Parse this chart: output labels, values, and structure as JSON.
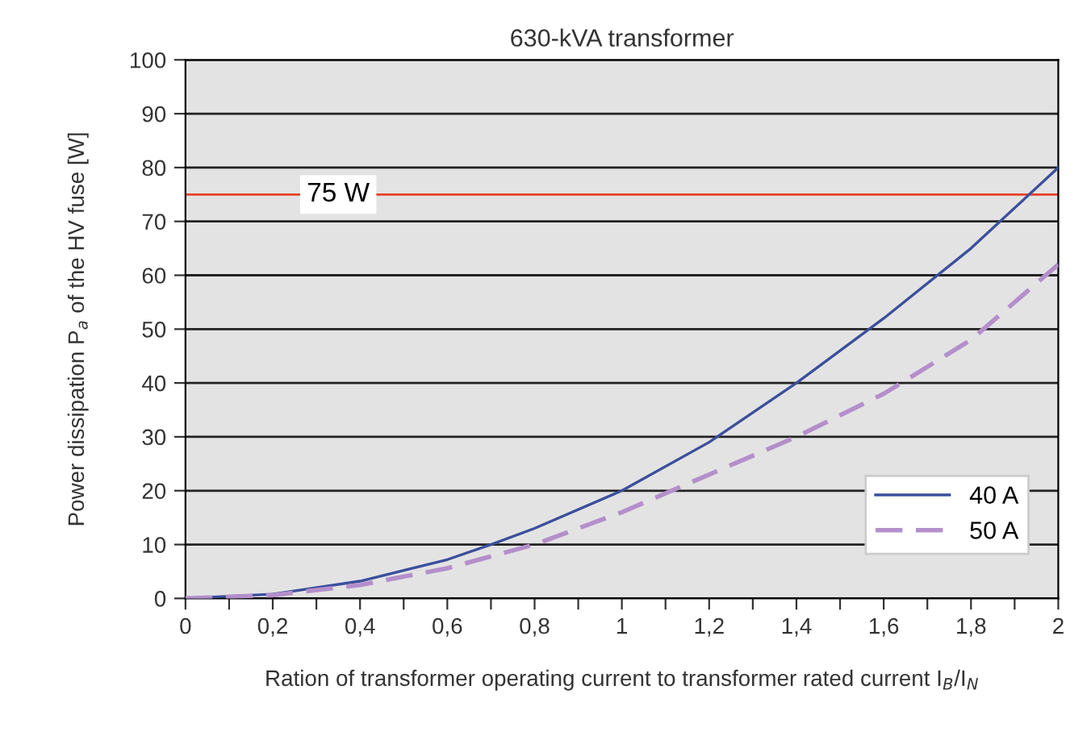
{
  "chart_data": {
    "type": "line",
    "title": "630-kVA transformer",
    "xlabel": "Ration of transformer operating current to transformer rated current I$_{B}$/I$_{N}$",
    "ylabel": "Power dissipation P$_{a}$ of the HV fuse [W]",
    "series": [
      {
        "name": "40 A",
        "color": "#3b4f9c",
        "line_style": "solid",
        "x": [
          0,
          0.2,
          0.4,
          0.6,
          0.7,
          0.8,
          1.0,
          1.2,
          1.4,
          1.6,
          1.8,
          2.0
        ],
        "values": [
          0,
          0.8,
          3.2,
          7.2,
          10,
          13,
          20,
          29,
          40,
          52,
          65,
          80
        ]
      },
      {
        "name": "50 A",
        "color": "#b48fcb",
        "line_style": "dashed",
        "x": [
          0,
          0.2,
          0.4,
          0.6,
          0.8,
          1.0,
          1.2,
          1.4,
          1.6,
          1.8,
          2.0
        ],
        "values": [
          0,
          0.6,
          2.5,
          5.6,
          10,
          16,
          23,
          30,
          38,
          48,
          62
        ]
      }
    ],
    "xlim": [
      0,
      2
    ],
    "ylim": [
      0,
      100
    ],
    "xticks": [
      0,
      {
        "value": 0.1,
        "label": null
      },
      {
        "value": 0.2,
        "label": "0,2"
      },
      {
        "value": 0.3,
        "label": null
      },
      {
        "value": 0.4,
        "label": "0,4"
      },
      {
        "value": 0.5,
        "label": null
      },
      {
        "value": 0.6,
        "label": "0,6"
      },
      {
        "value": 0.7,
        "label": null
      },
      {
        "value": 0.8,
        "label": "0,8"
      },
      {
        "value": 0.9,
        "label": null
      },
      1,
      {
        "value": 1.1,
        "label": null
      },
      {
        "value": 1.2,
        "label": "1,2"
      },
      {
        "value": 1.3,
        "label": null
      },
      {
        "value": 1.4,
        "label": "1,4"
      },
      {
        "value": 1.5,
        "label": null
      },
      {
        "value": 1.6,
        "label": "1,6"
      },
      {
        "value": 1.7,
        "label": null
      },
      {
        "value": 1.8,
        "label": "1,8"
      },
      {
        "value": 1.9,
        "label": null
      },
      2
    ],
    "yticks": [
      0,
      10,
      20,
      30,
      40,
      50,
      60,
      70,
      80,
      90,
      100
    ],
    "ref_lines": [
      {
        "axis": "y",
        "value": 75,
        "label": "75 W",
        "color": "#e8402a"
      }
    ],
    "grid": "y",
    "legend": "bottom right"
  }
}
